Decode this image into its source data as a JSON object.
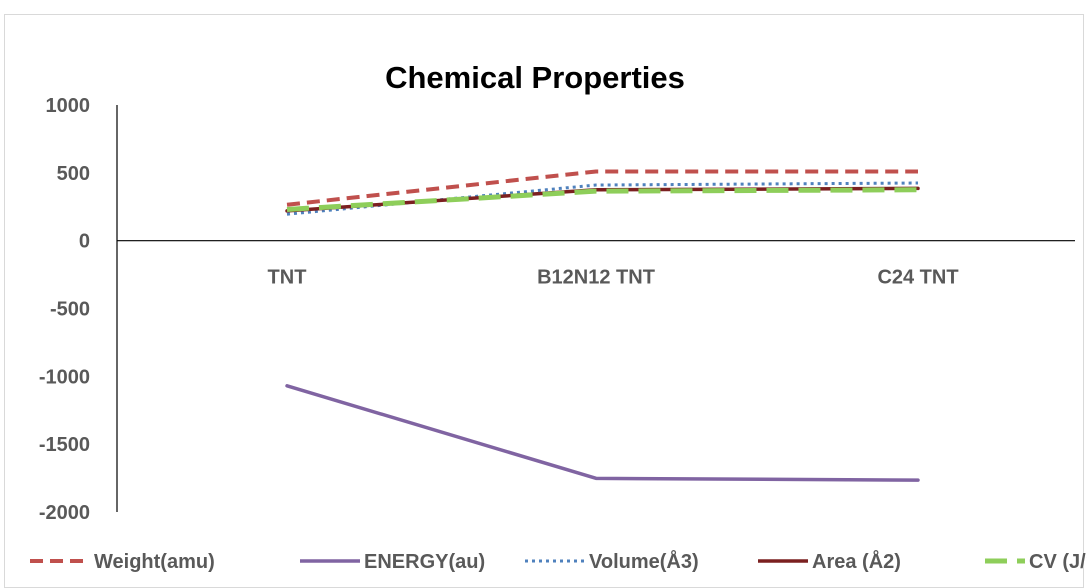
{
  "chart_data": {
    "type": "line",
    "title": "Chemical Properties",
    "xlabel": "",
    "ylabel": "",
    "categories": [
      "TNT",
      "B12N12 TNT",
      "C24 TNT"
    ],
    "y_ticks": [
      "1000",
      "500",
      "0",
      "-500",
      "-1000",
      "-1500",
      "-2000"
    ],
    "ylim": [
      -2000,
      1000
    ],
    "grid": false,
    "legend_position": "bottom",
    "series": [
      {
        "name": "Weight(amu)",
        "values": [
          265,
          510,
          510
        ],
        "color": "#c0504d",
        "style": "dashed"
      },
      {
        "name": "ENERGY(au)",
        "values": [
          -1070,
          -1752,
          -1765
        ],
        "color": "#8064a2",
        "style": "solid"
      },
      {
        "name": "Volume(Å3)",
        "values": [
          195,
          410,
          425
        ],
        "color": "#4f81bd",
        "style": "dotted"
      },
      {
        "name": "Area (Å2)",
        "values": [
          220,
          375,
          385
        ],
        "color": "#7b2020",
        "style": "solid"
      },
      {
        "name": "CV (J/mol)",
        "values": [
          230,
          365,
          375
        ],
        "color": "#8ece5a",
        "style": "longdash"
      }
    ]
  }
}
